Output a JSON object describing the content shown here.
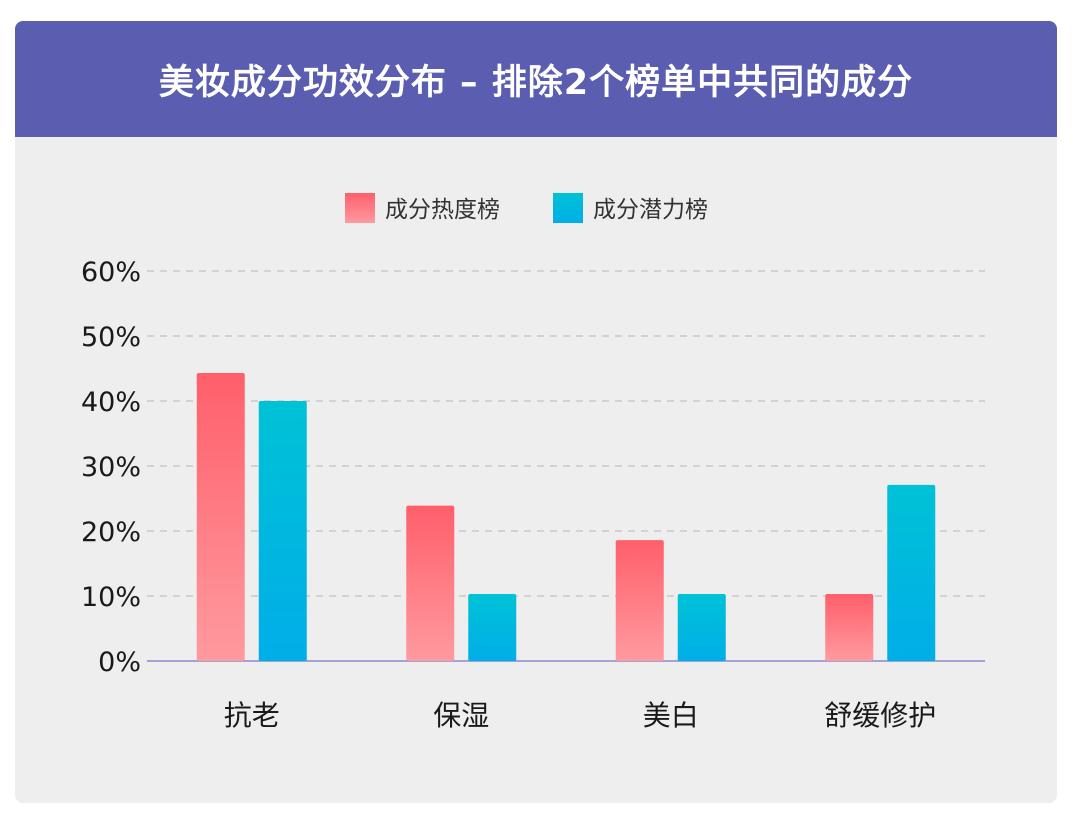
{
  "header": {
    "title": "美妆成分功效分布 – 排除2个榜单中共同的成分"
  },
  "colors": {
    "header_bg": "#5b5db0",
    "card_bg": "#eeeeee",
    "series_hot_top": "#ff5f6a",
    "series_hot_bottom": "#ff9aa0",
    "series_potential_top": "#00c2d6",
    "series_potential_bottom": "#00aee8",
    "gridline": "#c8c8c8",
    "baseline": "#8888cc"
  },
  "chart_data": {
    "type": "bar",
    "title": "美妆成分功效分布 – 排除2个榜单中共同的成分",
    "categories": [
      "抗老",
      "保湿",
      "美白",
      "舒缓修护"
    ],
    "series": [
      {
        "name": "成分热度榜",
        "values": [
          44.3,
          23.9,
          18.6,
          10.3
        ]
      },
      {
        "name": "成分潜力榜",
        "values": [
          40.0,
          10.3,
          10.3,
          27.1
        ]
      }
    ],
    "y_ticks": [
      "0%",
      "10%",
      "20%",
      "30%",
      "40%",
      "50%",
      "60%"
    ],
    "ylim": [
      0,
      60
    ],
    "grid": true,
    "legend_position": "top-center"
  }
}
